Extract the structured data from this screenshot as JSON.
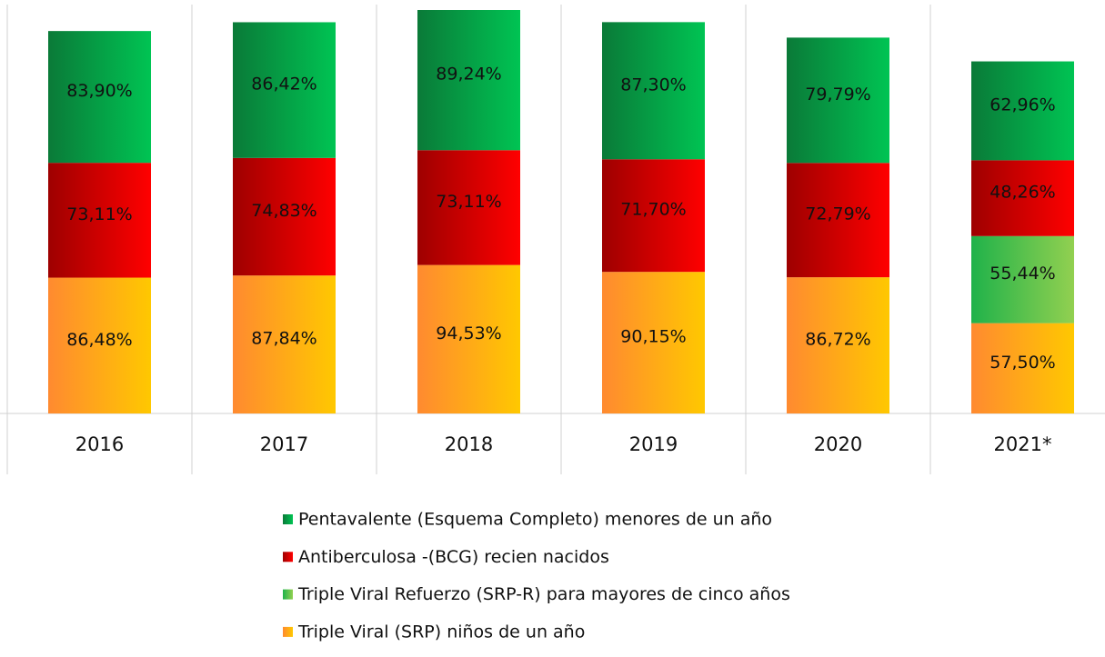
{
  "chart_data": {
    "type": "stacked-bar",
    "categories": [
      "2016",
      "2017",
      "2018",
      "2019",
      "2020",
      "2021*"
    ],
    "series": [
      {
        "name": "Pentavalente (Esquema Completo) menores de un año",
        "color": [
          "#0a7a38",
          "#00c453"
        ],
        "values": [
          83.9,
          86.42,
          89.24,
          87.3,
          79.79,
          62.96
        ],
        "value_labels": [
          "83,90%",
          "86,42%",
          "89,24%",
          "87,30%",
          "79,79%",
          "62,96%"
        ]
      },
      {
        "name": "Antiberculosa -(BCG) recien nacidos",
        "color": [
          "#9e0000",
          "#ff0000"
        ],
        "values": [
          73.11,
          74.83,
          73.11,
          71.7,
          72.79,
          48.26
        ],
        "value_labels": [
          "73,11%",
          "74,83%",
          "73,11%",
          "71,70%",
          "72,79%",
          "48,26%"
        ]
      },
      {
        "name": "Triple Viral Refuerzo (SRP-R) para mayores de cinco años",
        "color": [
          "#1fb24a",
          "#92d050"
        ],
        "values": [
          null,
          null,
          null,
          null,
          null,
          55.44
        ],
        "value_labels": [
          null,
          null,
          null,
          null,
          null,
          "55,44%"
        ]
      },
      {
        "name": "Triple Viral (SRP) niños de un año",
        "color": [
          "#ff8a30",
          "#ffc800"
        ],
        "values": [
          86.48,
          87.84,
          94.53,
          90.15,
          86.72,
          57.5
        ],
        "value_labels": [
          "86,48%",
          "87,84%",
          "94,53%",
          "90,15%",
          "86,72%",
          "57,50%"
        ]
      }
    ]
  }
}
